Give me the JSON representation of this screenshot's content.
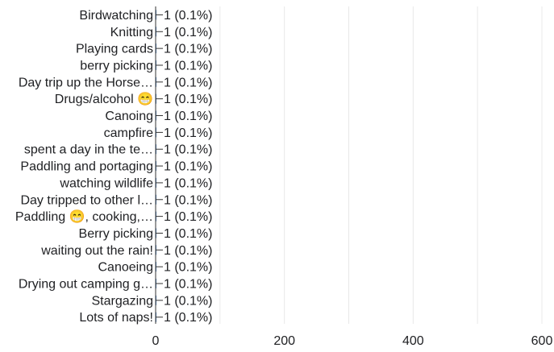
{
  "chart_data": {
    "type": "bar",
    "orientation": "horizontal",
    "title": "",
    "xlabel": "",
    "ylabel": "",
    "categories": [
      "Birdwatching",
      "Knitting",
      "Playing cards",
      "berry picking",
      "Day trip up the Horse…",
      "Drugs/alcohol 😁",
      "Canoing",
      "campfire",
      "spent a day in the te…",
      "Paddling and portaging",
      "watching wildlife",
      "Day tripped to other l…",
      "Paddling 😁, cooking,…",
      "Berry picking",
      "waiting out the rain!",
      "Canoeing",
      "Drying out camping g…",
      "Stargazing",
      "Lots of naps!"
    ],
    "values": [
      1,
      1,
      1,
      1,
      1,
      1,
      1,
      1,
      1,
      1,
      1,
      1,
      1,
      1,
      1,
      1,
      1,
      1,
      1
    ],
    "data_labels": [
      "1 (0.1%)",
      "1 (0.1%)",
      "1 (0.1%)",
      "1 (0.1%)",
      "1 (0.1%)",
      "1 (0.1%)",
      "1 (0.1%)",
      "1 (0.1%)",
      "1 (0.1%)",
      "1 (0.1%)",
      "1 (0.1%)",
      "1 (0.1%)",
      "1 (0.1%)",
      "1 (0.1%)",
      "1 (0.1%)",
      "1 (0.1%)",
      "1 (0.1%)",
      "1 (0.1%)",
      "1 (0.1%)"
    ],
    "xlim": [
      0,
      600
    ],
    "x_ticks": [
      0,
      200,
      400,
      600
    ],
    "x_tick_labels": [
      "0",
      "200",
      "400",
      "600"
    ],
    "grid": true,
    "legend": "none",
    "colors": {
      "bar": "#4f81bd",
      "grid": "#e8e8e8",
      "axis": "#333333",
      "text": "#202124"
    }
  }
}
